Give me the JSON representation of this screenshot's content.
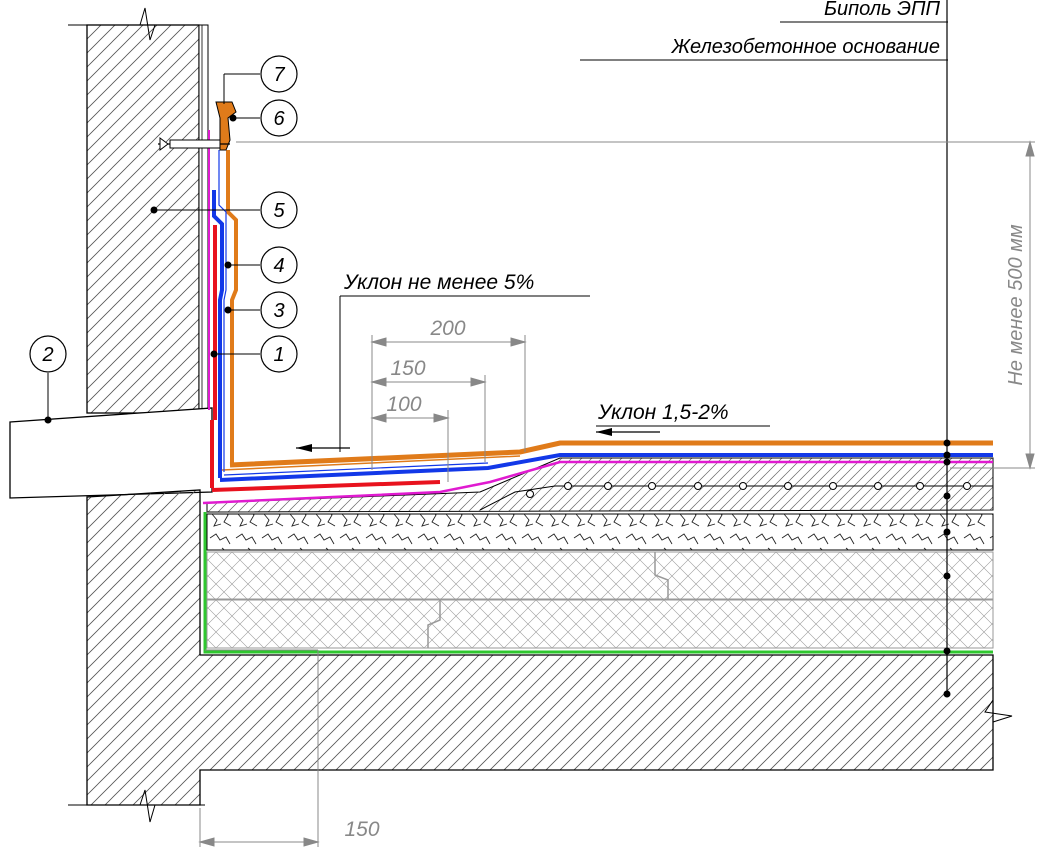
{
  "leaders": {
    "top": "Биполь ЭПП",
    "second": "Железобетонное основание"
  },
  "slopes": {
    "upturn": "Уклон не менее 5%",
    "field": "Уклон 1,5-2%"
  },
  "dimensions": {
    "d200": "200",
    "d150_top": "150",
    "d100": "100",
    "d150_bottom": "150",
    "vertical": "Не менее 500 мм"
  },
  "callouts": [
    "1",
    "2",
    "3",
    "4",
    "5",
    "6",
    "7"
  ],
  "colors": {
    "orange": "#e07b1a",
    "blue": "#1238e8",
    "red": "#e8121e",
    "magenta": "#e01ad0",
    "green": "#2fc72f",
    "gray": "#8c8c8c"
  }
}
